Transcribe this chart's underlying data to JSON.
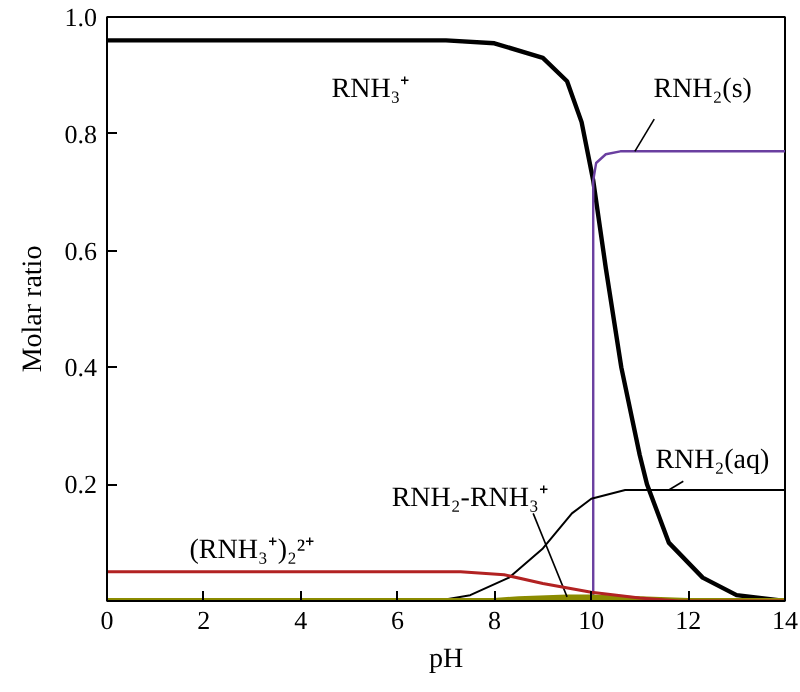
{
  "chart_data": {
    "type": "line",
    "xlabel": "pH",
    "ylabel": "Molar ratio",
    "xlim": [
      0,
      14
    ],
    "ylim": [
      0,
      1.0
    ],
    "xticks": [
      0,
      2,
      4,
      6,
      8,
      10,
      12,
      14
    ],
    "yticks": [
      {
        "value": 0,
        "label": null
      },
      0.2,
      0.4,
      0.6,
      0.8,
      {
        "value": 1.0,
        "label": "1.0"
      }
    ],
    "grid": false,
    "marker": "none",
    "line_style": "solid",
    "series": [
      {
        "name": "RNH₃⁺",
        "color": "#000000",
        "x": [
          0,
          7,
          8,
          9,
          9.5,
          9.8,
          10.04,
          10.3,
          10.62,
          11.0,
          11.15,
          11.6,
          12.3,
          13,
          14
        ],
        "values": [
          0.96,
          0.96,
          0.955,
          0.93,
          0.89,
          0.82,
          0.72,
          0.57,
          0.4,
          0.25,
          0.2,
          0.1,
          0.04,
          0.01,
          0.0
        ]
      },
      {
        "name": "RNH₂(s)",
        "color": "#6a3fa0",
        "x": [
          0,
          10.04,
          10.04,
          10.1,
          10.3,
          10.6,
          14
        ],
        "values": [
          0,
          0,
          0.72,
          0.75,
          0.765,
          0.77,
          0.77
        ]
      },
      {
        "name": "RNH₂(aq)",
        "color": "#000000",
        "x": [
          0,
          6.8,
          7.5,
          8.3,
          9,
          9.6,
          10,
          10.7,
          14
        ],
        "values": [
          0,
          0,
          0.01,
          0.04,
          0.09,
          0.15,
          0.175,
          0.19,
          0.19
        ]
      },
      {
        "name": "RNH₂-RNH₃⁺",
        "color": "#8b8b00",
        "x": [
          0,
          8,
          8.5,
          9.5,
          10,
          11,
          12,
          14
        ],
        "values": [
          0,
          0,
          0.003,
          0.006,
          0.006,
          0.003,
          0,
          0
        ]
      },
      {
        "name": "(RNH₃⁺)₂²⁺",
        "color": "#b22222",
        "x": [
          0,
          7.3,
          8.2,
          9,
          10,
          11,
          11.8,
          14
        ],
        "values": [
          0.05,
          0.05,
          0.045,
          0.03,
          0.015,
          0.005,
          0,
          0
        ]
      }
    ]
  }
}
